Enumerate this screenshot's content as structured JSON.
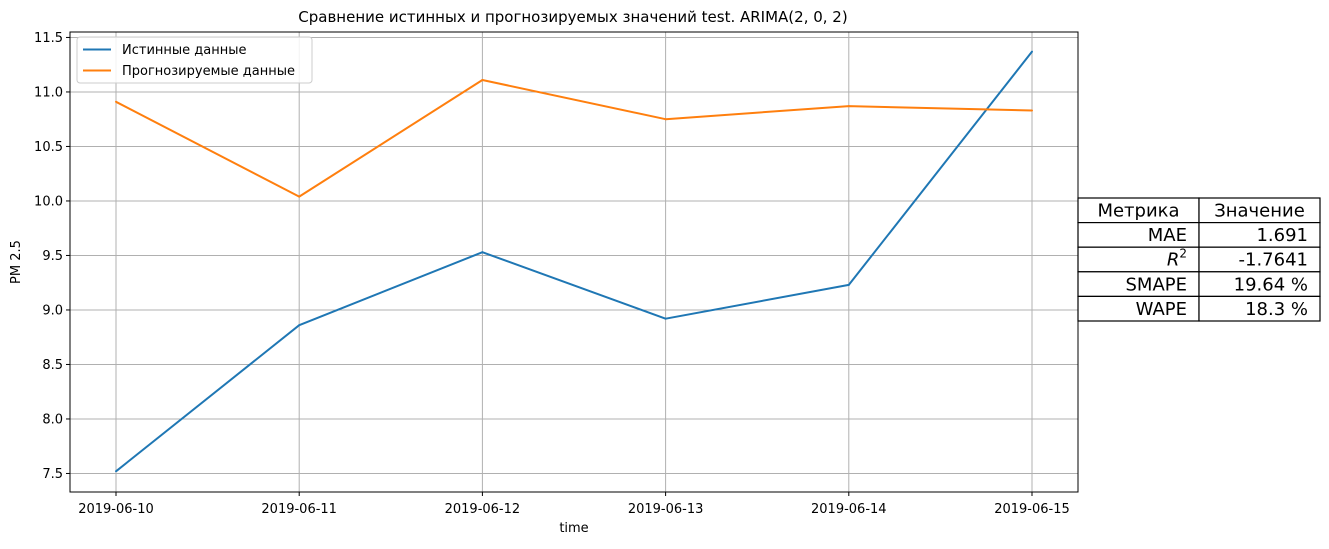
{
  "chart_data": {
    "type": "line",
    "title": "Сравнение истинных и прогнозируемых значений test. ARIMA(2, 0, 2)",
    "xlabel": "time",
    "ylabel": "PM 2.5",
    "x": [
      "2019-06-10",
      "2019-06-11",
      "2019-06-12",
      "2019-06-13",
      "2019-06-14",
      "2019-06-15"
    ],
    "yticks": [
      "7.5",
      "8.0",
      "8.5",
      "9.0",
      "9.5",
      "10.0",
      "10.5",
      "11.0",
      "11.5"
    ],
    "ylim": [
      7.33,
      11.55
    ],
    "grid": true,
    "legend_position": "top-left",
    "series": [
      {
        "name": "Истинные данные",
        "color": "#1f77b4",
        "values": [
          7.52,
          8.86,
          9.53,
          8.92,
          9.23,
          11.37
        ]
      },
      {
        "name": "Прогнозируемые данные",
        "color": "#ff7f0e",
        "values": [
          10.91,
          10.04,
          11.11,
          10.75,
          10.87,
          10.83
        ]
      }
    ]
  },
  "metrics_table": {
    "headers": [
      "Метрика",
      "Значение"
    ],
    "rows": [
      {
        "metric": "MAE",
        "value": "1.691"
      },
      {
        "metric": "R",
        "sup": "2",
        "value": "-1.7641"
      },
      {
        "metric": "SMAPE",
        "value": "19.64 %"
      },
      {
        "metric": "WAPE",
        "value": "18.3 %"
      }
    ]
  }
}
